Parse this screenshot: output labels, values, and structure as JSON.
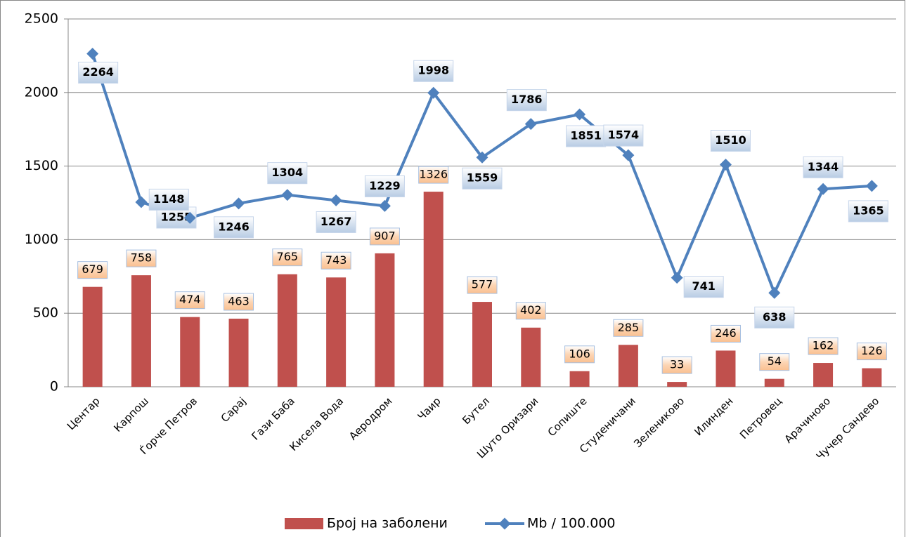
{
  "chart_data": {
    "type": "bar",
    "categories": [
      "Центар",
      "Карпош",
      "Ѓорче Петров",
      "Сарај",
      "Гази Баба",
      "Кисела Вода",
      "Аеродром",
      "Чаир",
      "Бутел",
      "Шуто Оризари",
      "Сопиште",
      "Студеничани",
      "Зелениково",
      "Илинден",
      "Петровец",
      "Арачиново",
      "Чучер Сандево"
    ],
    "series": [
      {
        "name": "Број на заболени",
        "type": "bar",
        "color": "#c0504d",
        "values": [
          679,
          758,
          474,
          463,
          765,
          743,
          907,
          1326,
          577,
          402,
          106,
          285,
          33,
          246,
          54,
          162,
          126
        ]
      },
      {
        "name": "Mb / 100.000",
        "type": "line",
        "color": "#4f81bd",
        "values": [
          2264,
          1255,
          1148,
          1246,
          1304,
          1267,
          1229,
          1998,
          1559,
          1786,
          1851,
          1574,
          741,
          1510,
          638,
          1344,
          1365
        ]
      }
    ],
    "ylim": [
      0,
      2500
    ],
    "yticks": [
      0,
      500,
      1000,
      1500,
      2000,
      2500
    ],
    "grid": true,
    "legend": "bottom"
  }
}
